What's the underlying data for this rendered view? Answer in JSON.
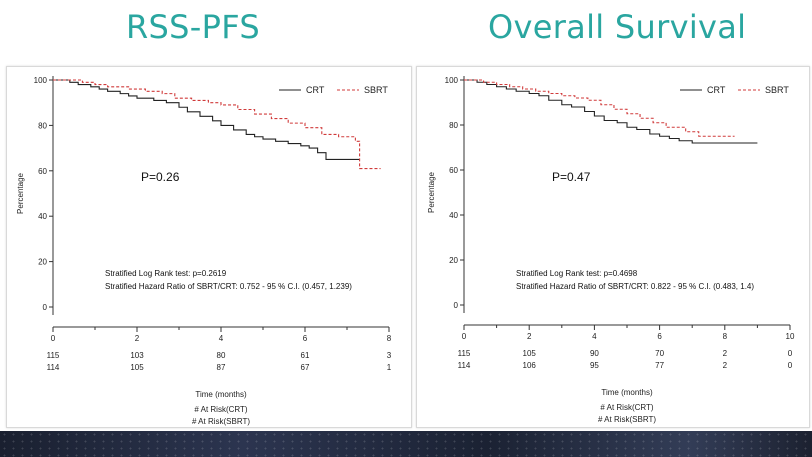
{
  "titles": {
    "left": "RSS-PFS",
    "right": "Overall Survival"
  },
  "chart_data": [
    {
      "type": "line",
      "title": "RSS-PFS",
      "ylabel": "Percentage",
      "xlabel": "Time (months)",
      "xlim": [
        0,
        8
      ],
      "ylim": [
        0,
        100
      ],
      "xticks": [
        0,
        2,
        4,
        6,
        8
      ],
      "yticks": [
        0,
        20,
        40,
        60,
        80,
        100
      ],
      "legend_position": "top-right",
      "series": [
        {
          "name": "CRT",
          "color": "#222222",
          "dash": "solid",
          "x": [
            0,
            0.4,
            0.6,
            0.9,
            1.1,
            1.3,
            1.6,
            1.8,
            2.0,
            2.4,
            2.7,
            3.0,
            3.2,
            3.5,
            3.8,
            4.0,
            4.3,
            4.6,
            4.8,
            5.0,
            5.3,
            5.6,
            5.9,
            6.1,
            6.3,
            6.5,
            7.3
          ],
          "y": [
            100,
            99,
            98,
            97,
            96,
            95,
            94,
            93,
            92,
            91,
            90,
            88,
            86,
            84,
            82,
            80,
            78,
            76,
            75,
            74,
            73,
            72,
            71,
            70,
            68,
            65,
            65
          ]
        },
        {
          "name": "SBRT",
          "color": "#d03a3a",
          "dash": "dashed",
          "x": [
            0,
            0.7,
            1.0,
            1.3,
            1.8,
            2.2,
            2.6,
            2.9,
            3.3,
            3.7,
            4.0,
            4.4,
            4.8,
            5.2,
            5.6,
            6.0,
            6.4,
            6.8,
            7.2,
            7.3,
            7.8
          ],
          "y": [
            100,
            99,
            98,
            97,
            96,
            95,
            94,
            92,
            91,
            90,
            89,
            87,
            85,
            83,
            81,
            79,
            76,
            75,
            73,
            61,
            61
          ]
        }
      ],
      "annotations": {
        "p_value": "P=0.26",
        "logrank": "Stratified Log Rank test: p=0.2619",
        "hazard": "Stratified Hazard Ratio of SBRT/CRT:  0.752 - 95 % C.I.   (0.457, 1.239)"
      },
      "at_risk": {
        "times": [
          0,
          2,
          4,
          6,
          8
        ],
        "crt": [
          "115",
          "103",
          "80",
          "61",
          "3"
        ],
        "sbrt": [
          "114",
          "105",
          "87",
          "67",
          "1"
        ],
        "label_crt": "# At Risk(CRT)",
        "label_sbrt": "# At Risk(SBRT)"
      }
    },
    {
      "type": "line",
      "title": "Overall Survival",
      "ylabel": "Percentage",
      "xlabel": "Time (months)",
      "xlim": [
        0,
        10
      ],
      "ylim": [
        0,
        100
      ],
      "xticks": [
        0,
        2,
        4,
        6,
        8,
        10
      ],
      "yticks": [
        0,
        20,
        40,
        60,
        80,
        100
      ],
      "legend_position": "top-right",
      "series": [
        {
          "name": "CRT",
          "color": "#222222",
          "dash": "solid",
          "x": [
            0,
            0.4,
            0.7,
            1.0,
            1.3,
            1.6,
            2.0,
            2.3,
            2.6,
            3.0,
            3.3,
            3.7,
            4.0,
            4.3,
            4.7,
            5.0,
            5.3,
            5.7,
            6.0,
            6.3,
            6.6,
            7.0,
            9.0
          ],
          "y": [
            100,
            99,
            98,
            97,
            96,
            95,
            94,
            93,
            91,
            89,
            88,
            86,
            84,
            82,
            81,
            79,
            78,
            76,
            75,
            74,
            73,
            72,
            72
          ]
        },
        {
          "name": "SBRT",
          "color": "#d03a3a",
          "dash": "dashed",
          "x": [
            0,
            0.6,
            1.0,
            1.4,
            1.8,
            2.2,
            2.6,
            3.0,
            3.4,
            3.8,
            4.2,
            4.6,
            5.0,
            5.4,
            5.8,
            6.2,
            6.8,
            7.2,
            8.3
          ],
          "y": [
            100,
            99,
            98,
            97,
            96,
            95,
            94,
            93,
            92,
            91,
            89,
            87,
            85,
            83,
            81,
            79,
            77,
            75,
            75
          ]
        }
      ],
      "annotations": {
        "p_value": "P=0.47",
        "logrank": "Stratified Log Rank test: p=0.4698",
        "hazard": "Stratified Hazard Ratio of SBRT/CRT:  0.822 - 95 % C.I.   (0.483,   1.4)"
      },
      "at_risk": {
        "times": [
          0,
          2,
          4,
          6,
          8,
          10
        ],
        "crt": [
          "115",
          "105",
          "90",
          "70",
          "2",
          "0"
        ],
        "sbrt": [
          "114",
          "106",
          "95",
          "77",
          "2",
          "0"
        ],
        "label_crt": "# At Risk(CRT)",
        "label_sbrt": "# At Risk(SBRT)"
      }
    }
  ]
}
